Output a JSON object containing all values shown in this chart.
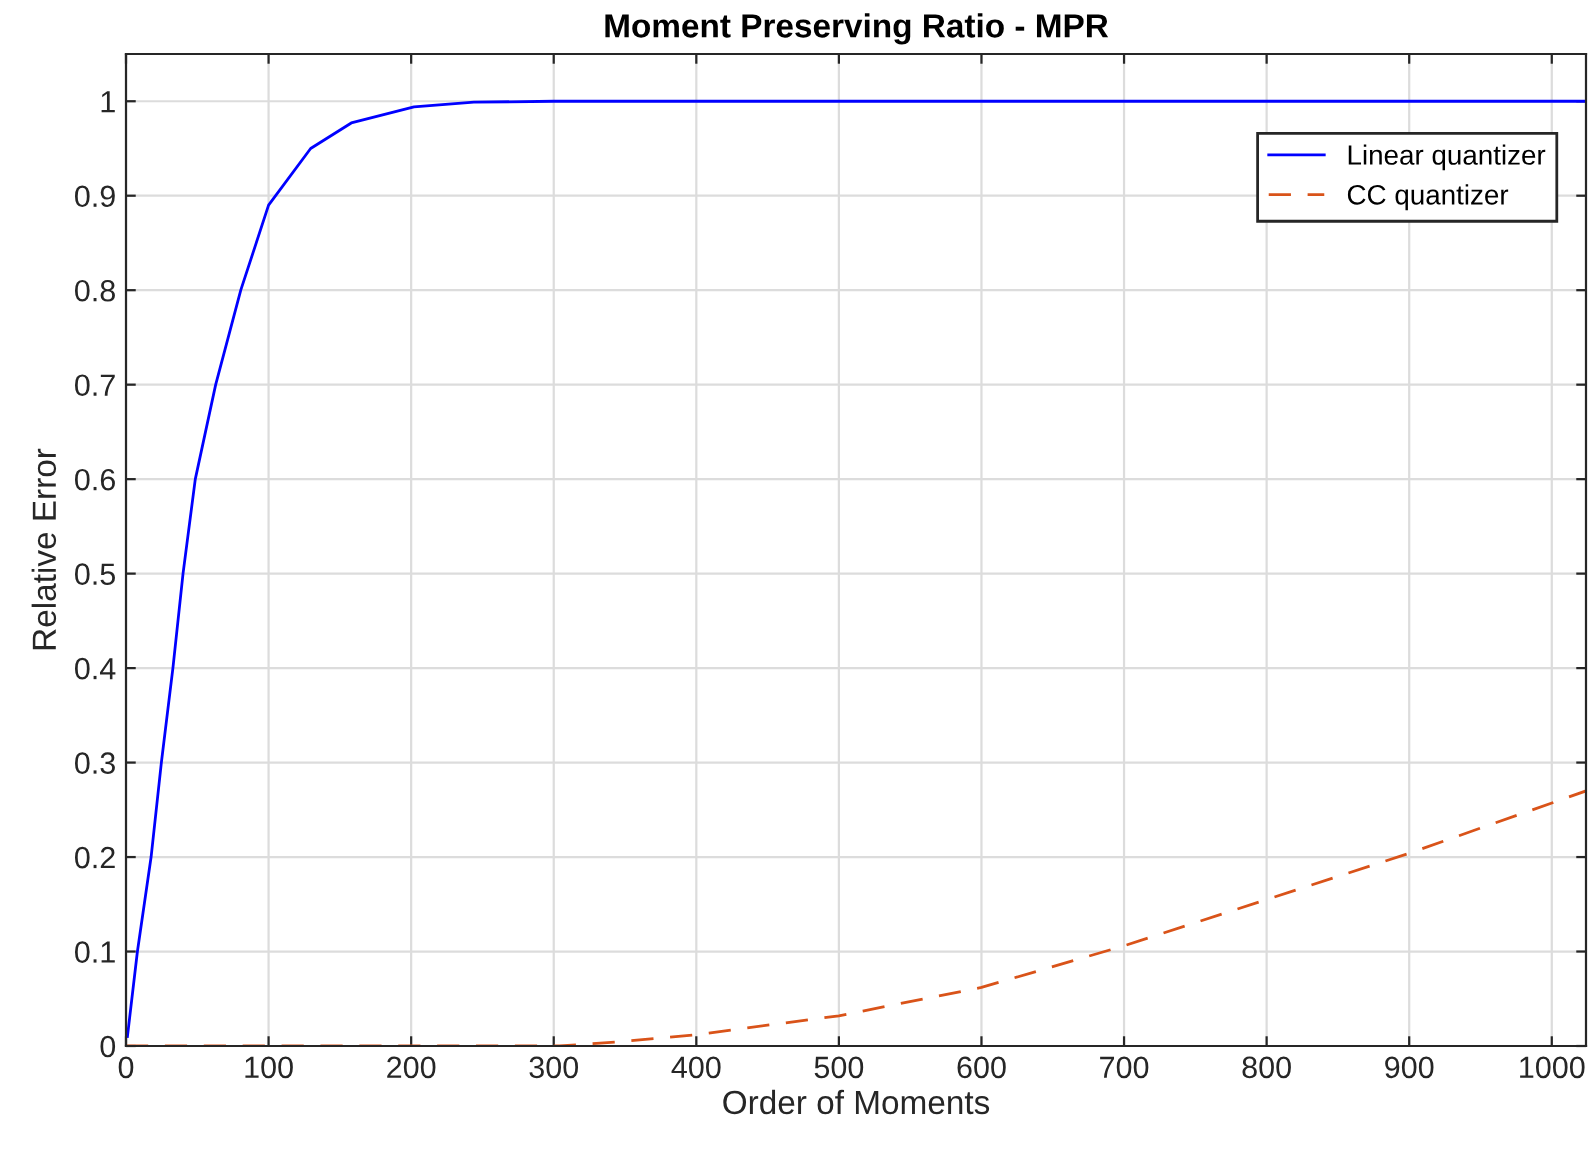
{
  "chart_data": {
    "type": "line",
    "title": "Moment Preserving Ratio - MPR",
    "xlabel": "Order of Moments",
    "ylabel": "Relative Error",
    "xlim": [
      0,
      1024
    ],
    "ylim": [
      0,
      1.05
    ],
    "xticks": [
      0,
      100,
      200,
      300,
      400,
      500,
      600,
      700,
      800,
      900,
      1000
    ],
    "yticks": [
      0,
      0.1,
      0.2,
      0.3,
      0.4,
      0.5,
      0.6,
      0.7,
      0.8,
      0.9,
      1
    ],
    "grid": true,
    "legend": "top right",
    "marker": "none",
    "series": [
      {
        "name": "Linear quantizer",
        "color": "#0000ff",
        "line_style": "solid",
        "x": [
          1,
          8,
          17.6,
          24.8,
          32.9,
          40,
          48.6,
          62.9,
          80.5,
          100,
          129.5,
          158,
          202,
          244,
          300,
          1024
        ],
        "values": [
          0.01,
          0.1,
          0.2,
          0.3,
          0.4,
          0.5,
          0.6,
          0.7,
          0.8,
          0.89,
          0.95,
          0.977,
          0.994,
          0.999,
          1,
          1
        ]
      },
      {
        "name": "CC quantizer",
        "color": "#d95319",
        "line_style": "dashed",
        "x": [
          0,
          304,
          350,
          400,
          500,
          600,
          700,
          800,
          900,
          1024
        ],
        "values": [
          0,
          0,
          0.005,
          0.012,
          0.032,
          0.062,
          0.106,
          0.155,
          0.204,
          0.27
        ]
      }
    ]
  }
}
